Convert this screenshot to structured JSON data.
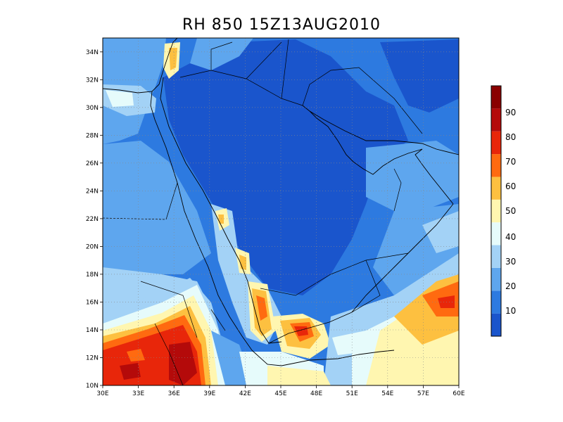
{
  "title": "RH 850  15Z13AUG2010",
  "map": {
    "lon_range": [
      30,
      60
    ],
    "lat_range": [
      10,
      35
    ],
    "x_ticks": [
      "30E",
      "33E",
      "36E",
      "39E",
      "42E",
      "45E",
      "48E",
      "51E",
      "54E",
      "57E",
      "60E"
    ],
    "y_ticks": [
      "10N",
      "12N",
      "14N",
      "16N",
      "18N",
      "20N",
      "22N",
      "24N",
      "26N",
      "28N",
      "30N",
      "32N",
      "34N"
    ],
    "grid": "dotted"
  },
  "colorbar": {
    "labels": [
      "10",
      "20",
      "30",
      "40",
      "50",
      "60",
      "70",
      "80",
      "90"
    ],
    "colors": [
      "#1a55cc",
      "#2d7ae0",
      "#5ea6ee",
      "#a3d2f6",
      "#e6fbfb",
      "#fff6b0",
      "#fdc040",
      "#ff6a10",
      "#e8260a",
      "#b40a0a",
      "#8a0000"
    ]
  }
}
